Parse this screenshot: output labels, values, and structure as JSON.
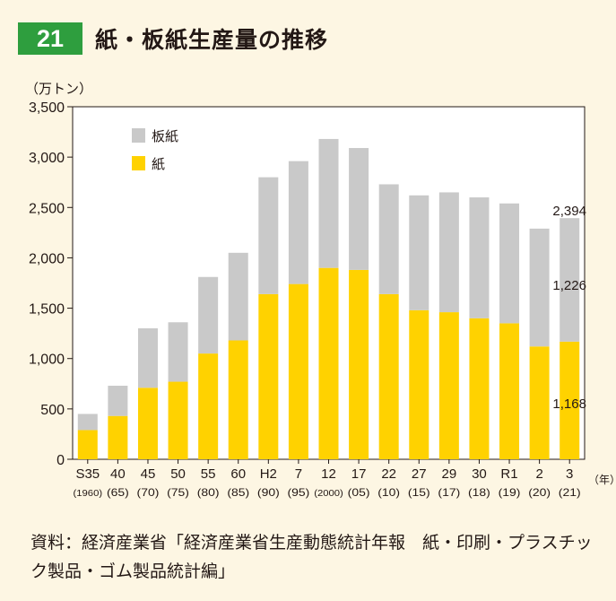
{
  "figure": {
    "number": "21",
    "title": "紙・板紙生産量の推移"
  },
  "source_text": "資料：経済産業省「経済産業省生産動態統計年報　紙・印刷・プラスチック製品・ゴム製品統計編」",
  "colors": {
    "paper": "#ffd200",
    "paperboard": "#c9c9c9",
    "title_badge": "#2e9e3e",
    "background": "#fdf6e3"
  },
  "chart_data": {
    "type": "bar",
    "stacked": true,
    "ylabel": "（万トン）",
    "xlabel": "（年）",
    "ylim": [
      0,
      3500
    ],
    "yticks": [
      "0",
      "500",
      "1,000",
      "1,500",
      "2,000",
      "2,500",
      "3,000",
      "3,500"
    ],
    "categories": [
      "S35",
      "40",
      "45",
      "50",
      "55",
      "60",
      "H2",
      "7",
      "12",
      "17",
      "22",
      "27",
      "29",
      "30",
      "R1",
      "2",
      "3"
    ],
    "sublabels": [
      "(1960)",
      "(65)",
      "(70)",
      "(75)",
      "(80)",
      "(85)",
      "(90)",
      "(95)",
      "(2000)",
      "(05)",
      "(10)",
      "(15)",
      "(17)",
      "(18)",
      "(19)",
      "(20)",
      "(21)"
    ],
    "series": [
      {
        "name": "紙",
        "values": [
          290,
          430,
          710,
          770,
          1050,
          1180,
          1640,
          1740,
          1900,
          1880,
          1640,
          1480,
          1460,
          1400,
          1350,
          1120,
          1168
        ]
      },
      {
        "name": "板紙",
        "values": [
          160,
          300,
          590,
          590,
          760,
          870,
          1160,
          1220,
          1280,
          1210,
          1090,
          1140,
          1190,
          1200,
          1190,
          1170,
          1226
        ]
      }
    ],
    "legend": {
      "position": "top-left",
      "entries": [
        "板紙",
        "紙"
      ]
    },
    "annotations": {
      "total": "2,394",
      "paperboard": "1,226",
      "paper": "1,168"
    },
    "grid": false
  }
}
